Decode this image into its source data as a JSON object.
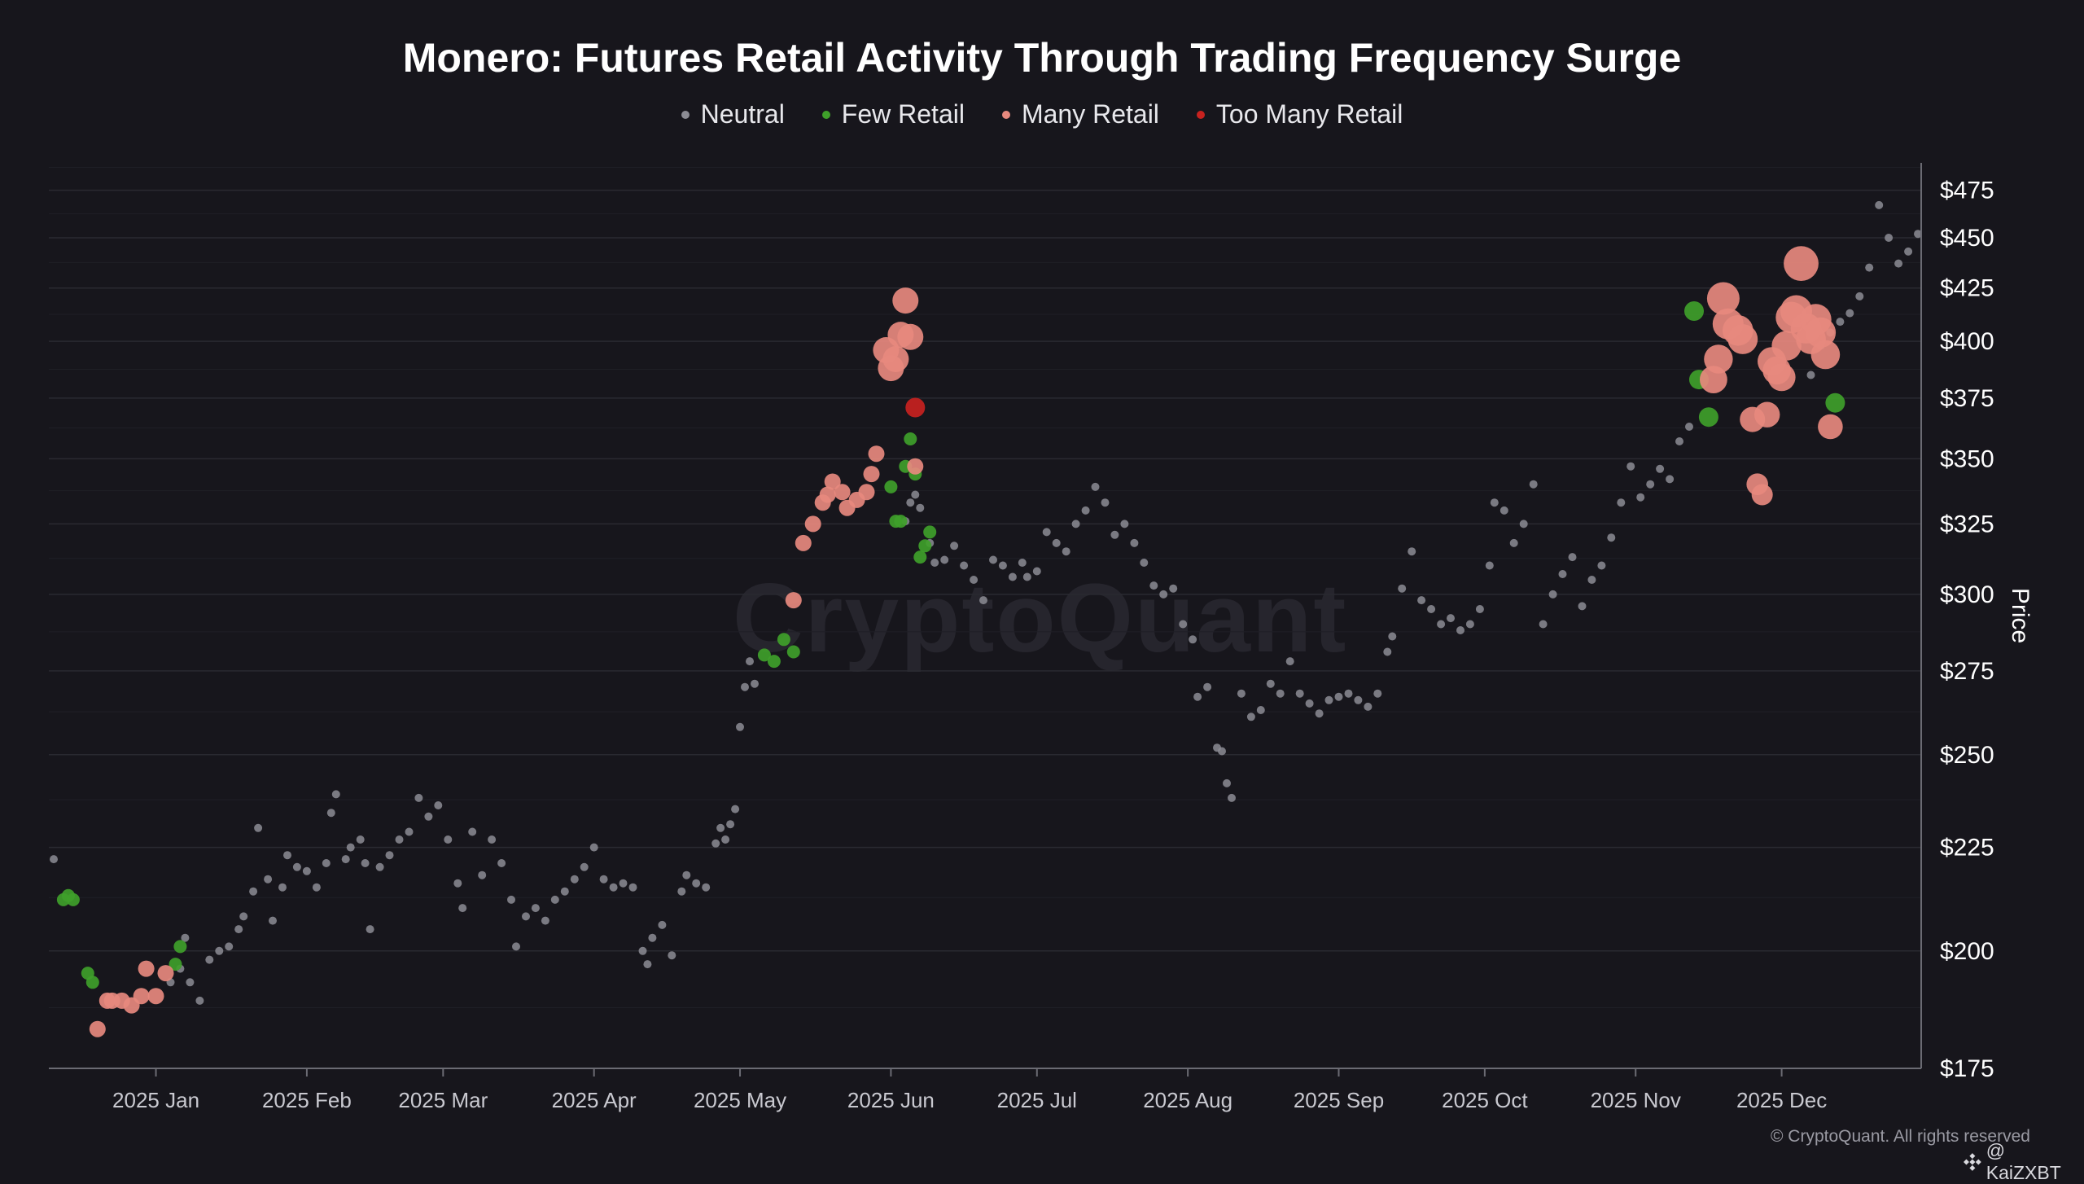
{
  "title": "Monero: Futures Retail Activity Through Trading Frequency Surge",
  "legend": [
    {
      "label": "Neutral",
      "color": "#8c8c94"
    },
    {
      "label": "Few Retail",
      "color": "#3fa02a"
    },
    {
      "label": "Many Retail",
      "color": "#e7897e"
    },
    {
      "label": "Too Many Retail",
      "color": "#c8221f"
    }
  ],
  "watermark": "CryptoQuant",
  "footer": {
    "copyright": "© CryptoQuant. All rights reserved",
    "handle": "@ KaiZXBT",
    "handle_icon": "binance-diamond-icon"
  },
  "chart_data": {
    "type": "scatter",
    "title": "Monero: Futures Retail Activity Through Trading Frequency Surge",
    "ylabel": "Price",
    "y_scale": "log",
    "ylim": [
      175,
      490
    ],
    "x_range": [
      "2024-12-10",
      "2025-12-30"
    ],
    "y_ticks": [
      "$175",
      "$200",
      "$225",
      "$250",
      "$275",
      "$300",
      "$325",
      "$350",
      "$375",
      "$400",
      "$425",
      "$450",
      "$475"
    ],
    "y_tick_values": [
      175,
      200,
      225,
      250,
      275,
      300,
      325,
      350,
      375,
      400,
      425,
      450,
      475
    ],
    "x_ticks": [
      "2025 Jan",
      "2025 Feb",
      "2025 Mar",
      "2025 Apr",
      "2025 May",
      "2025 Jun",
      "2025 Jul",
      "2025 Aug",
      "2025 Sep",
      "2025 Oct",
      "2025 Nov",
      "2025 Dec"
    ],
    "x_tick_dates": [
      "2025-01-01",
      "2025-02-01",
      "2025-03-01",
      "2025-04-01",
      "2025-05-01",
      "2025-06-01",
      "2025-07-01",
      "2025-08-01",
      "2025-09-01",
      "2025-10-01",
      "2025-11-01",
      "2025-12-01"
    ],
    "grid": "horizontal",
    "legend_position": "top-center",
    "categories": [
      "Neutral",
      "Few Retail",
      "Many Retail",
      "Too Many Retail"
    ],
    "series": [
      {
        "name": "Neutral",
        "color": "#8c8c94",
        "points": [
          [
            "2024-12-11",
            222
          ],
          [
            "2025-01-04",
            193
          ],
          [
            "2025-01-06",
            196
          ],
          [
            "2025-01-07",
            203
          ],
          [
            "2025-01-08",
            193
          ],
          [
            "2025-01-10",
            189
          ],
          [
            "2025-01-12",
            198
          ],
          [
            "2025-01-14",
            200
          ],
          [
            "2025-01-16",
            201
          ],
          [
            "2025-01-18",
            205
          ],
          [
            "2025-01-19",
            208
          ],
          [
            "2025-01-21",
            214
          ],
          [
            "2025-01-22",
            230
          ],
          [
            "2025-01-24",
            217
          ],
          [
            "2025-01-25",
            207
          ],
          [
            "2025-01-27",
            215
          ],
          [
            "2025-01-28",
            223
          ],
          [
            "2025-01-30",
            220
          ],
          [
            "2025-02-01",
            219
          ],
          [
            "2025-02-03",
            215
          ],
          [
            "2025-02-05",
            221
          ],
          [
            "2025-02-06",
            234
          ],
          [
            "2025-02-07",
            239
          ],
          [
            "2025-02-09",
            222
          ],
          [
            "2025-02-10",
            225
          ],
          [
            "2025-02-12",
            227
          ],
          [
            "2025-02-13",
            221
          ],
          [
            "2025-02-14",
            205
          ],
          [
            "2025-02-16",
            220
          ],
          [
            "2025-02-18",
            223
          ],
          [
            "2025-02-20",
            227
          ],
          [
            "2025-02-22",
            229
          ],
          [
            "2025-02-24",
            238
          ],
          [
            "2025-02-26",
            233
          ],
          [
            "2025-02-28",
            236
          ],
          [
            "2025-03-02",
            227
          ],
          [
            "2025-03-04",
            216
          ],
          [
            "2025-03-05",
            210
          ],
          [
            "2025-03-07",
            229
          ],
          [
            "2025-03-09",
            218
          ],
          [
            "2025-03-11",
            227
          ],
          [
            "2025-03-13",
            221
          ],
          [
            "2025-03-15",
            212
          ],
          [
            "2025-03-16",
            201
          ],
          [
            "2025-03-18",
            208
          ],
          [
            "2025-03-20",
            210
          ],
          [
            "2025-03-22",
            207
          ],
          [
            "2025-03-24",
            212
          ],
          [
            "2025-03-26",
            214
          ],
          [
            "2025-03-28",
            217
          ],
          [
            "2025-03-30",
            220
          ],
          [
            "2025-04-01",
            225
          ],
          [
            "2025-04-03",
            217
          ],
          [
            "2025-04-05",
            215
          ],
          [
            "2025-04-07",
            216
          ],
          [
            "2025-04-09",
            215
          ],
          [
            "2025-04-11",
            200
          ],
          [
            "2025-04-12",
            197
          ],
          [
            "2025-04-13",
            203
          ],
          [
            "2025-04-15",
            206
          ],
          [
            "2025-04-17",
            199
          ],
          [
            "2025-04-19",
            214
          ],
          [
            "2025-04-20",
            218
          ],
          [
            "2025-04-22",
            216
          ],
          [
            "2025-04-24",
            215
          ],
          [
            "2025-04-26",
            226
          ],
          [
            "2025-04-27",
            230
          ],
          [
            "2025-04-28",
            227
          ],
          [
            "2025-04-29",
            231
          ],
          [
            "2025-04-30",
            235
          ],
          [
            "2025-05-01",
            258
          ],
          [
            "2025-05-02",
            270
          ],
          [
            "2025-05-03",
            278
          ],
          [
            "2025-05-04",
            271
          ],
          [
            "2025-06-04",
            326
          ],
          [
            "2025-06-05",
            333
          ],
          [
            "2025-06-06",
            336
          ],
          [
            "2025-06-07",
            331
          ],
          [
            "2025-06-09",
            318
          ],
          [
            "2025-06-10",
            311
          ],
          [
            "2025-06-12",
            312
          ],
          [
            "2025-06-14",
            317
          ],
          [
            "2025-06-16",
            310
          ],
          [
            "2025-06-18",
            305
          ],
          [
            "2025-06-20",
            298
          ],
          [
            "2025-06-22",
            312
          ],
          [
            "2025-06-24",
            310
          ],
          [
            "2025-06-26",
            306
          ],
          [
            "2025-06-28",
            311
          ],
          [
            "2025-06-29",
            306
          ],
          [
            "2025-07-01",
            308
          ],
          [
            "2025-07-03",
            322
          ],
          [
            "2025-07-05",
            318
          ],
          [
            "2025-07-07",
            315
          ],
          [
            "2025-07-09",
            325
          ],
          [
            "2025-07-11",
            330
          ],
          [
            "2025-07-13",
            339
          ],
          [
            "2025-07-15",
            333
          ],
          [
            "2025-07-17",
            321
          ],
          [
            "2025-07-19",
            325
          ],
          [
            "2025-07-21",
            318
          ],
          [
            "2025-07-23",
            311
          ],
          [
            "2025-07-25",
            303
          ],
          [
            "2025-07-27",
            300
          ],
          [
            "2025-07-29",
            302
          ],
          [
            "2025-07-31",
            290
          ],
          [
            "2025-08-02",
            285
          ],
          [
            "2025-08-03",
            267
          ],
          [
            "2025-08-05",
            270
          ],
          [
            "2025-08-07",
            252
          ],
          [
            "2025-08-08",
            251
          ],
          [
            "2025-08-09",
            242
          ],
          [
            "2025-08-10",
            238
          ],
          [
            "2025-08-12",
            268
          ],
          [
            "2025-08-14",
            261
          ],
          [
            "2025-08-16",
            263
          ],
          [
            "2025-08-18",
            271
          ],
          [
            "2025-08-20",
            268
          ],
          [
            "2025-08-22",
            278
          ],
          [
            "2025-08-24",
            268
          ],
          [
            "2025-08-26",
            265
          ],
          [
            "2025-08-28",
            262
          ],
          [
            "2025-08-30",
            266
          ],
          [
            "2025-09-01",
            267
          ],
          [
            "2025-09-03",
            268
          ],
          [
            "2025-09-05",
            266
          ],
          [
            "2025-09-07",
            264
          ],
          [
            "2025-09-09",
            268
          ],
          [
            "2025-09-11",
            281
          ],
          [
            "2025-09-12",
            286
          ],
          [
            "2025-09-14",
            302
          ],
          [
            "2025-09-16",
            315
          ],
          [
            "2025-09-18",
            298
          ],
          [
            "2025-09-20",
            295
          ],
          [
            "2025-09-22",
            290
          ],
          [
            "2025-09-24",
            292
          ],
          [
            "2025-09-26",
            288
          ],
          [
            "2025-09-28",
            290
          ],
          [
            "2025-09-30",
            295
          ],
          [
            "2025-10-02",
            310
          ],
          [
            "2025-10-03",
            333
          ],
          [
            "2025-10-05",
            330
          ],
          [
            "2025-10-07",
            318
          ],
          [
            "2025-10-09",
            325
          ],
          [
            "2025-10-11",
            340
          ],
          [
            "2025-10-13",
            290
          ],
          [
            "2025-10-15",
            300
          ],
          [
            "2025-10-17",
            307
          ],
          [
            "2025-10-19",
            313
          ],
          [
            "2025-10-21",
            296
          ],
          [
            "2025-10-23",
            305
          ],
          [
            "2025-10-25",
            310
          ],
          [
            "2025-10-27",
            320
          ],
          [
            "2025-10-29",
            333
          ],
          [
            "2025-10-31",
            347
          ],
          [
            "2025-11-02",
            335
          ],
          [
            "2025-11-04",
            340
          ],
          [
            "2025-11-06",
            346
          ],
          [
            "2025-11-08",
            342
          ],
          [
            "2025-11-10",
            357
          ],
          [
            "2025-11-12",
            363
          ],
          [
            "2025-12-07",
            385
          ],
          [
            "2025-12-09",
            398
          ],
          [
            "2025-12-11",
            404
          ],
          [
            "2025-12-13",
            409
          ],
          [
            "2025-12-15",
            413
          ],
          [
            "2025-12-17",
            421
          ],
          [
            "2025-12-19",
            435
          ],
          [
            "2025-12-21",
            467
          ],
          [
            "2025-12-23",
            450
          ],
          [
            "2025-12-25",
            437
          ],
          [
            "2025-12-27",
            443
          ],
          [
            "2025-12-29",
            452
          ]
        ]
      },
      {
        "name": "Few Retail",
        "color": "#3fa02a",
        "points": [
          [
            "2024-12-13",
            212
          ],
          [
            "2024-12-14",
            213
          ],
          [
            "2024-12-15",
            212
          ],
          [
            "2024-12-18",
            195
          ],
          [
            "2024-12-19",
            193
          ],
          [
            "2025-01-05",
            197
          ],
          [
            "2025-01-06",
            201
          ],
          [
            "2025-05-06",
            280
          ],
          [
            "2025-05-08",
            278
          ],
          [
            "2025-05-10",
            285
          ],
          [
            "2025-05-12",
            281
          ],
          [
            "2025-06-01",
            339
          ],
          [
            "2025-06-02",
            326
          ],
          [
            "2025-06-03",
            326
          ],
          [
            "2025-06-04",
            347
          ],
          [
            "2025-06-05",
            358
          ],
          [
            "2025-06-06",
            344
          ],
          [
            "2025-06-07",
            313
          ],
          [
            "2025-06-08",
            317
          ],
          [
            "2025-06-09",
            322
          ],
          [
            "2025-11-13",
            414
          ],
          [
            "2025-11-14",
            383
          ],
          [
            "2025-11-16",
            367
          ],
          [
            "2025-12-12",
            373
          ]
        ]
      },
      {
        "name": "Many Retail",
        "color": "#e7897e",
        "points": [
          [
            "2024-12-20",
            183
          ],
          [
            "2024-12-22",
            189
          ],
          [
            "2024-12-23",
            189
          ],
          [
            "2024-12-25",
            189
          ],
          [
            "2024-12-27",
            188
          ],
          [
            "2024-12-29",
            190
          ],
          [
            "2024-12-30",
            196
          ],
          [
            "2025-01-01",
            190
          ],
          [
            "2025-01-03",
            195
          ],
          [
            "2025-05-12",
            298
          ],
          [
            "2025-05-14",
            318
          ],
          [
            "2025-05-16",
            325
          ],
          [
            "2025-05-18",
            333
          ],
          [
            "2025-05-19",
            336
          ],
          [
            "2025-05-20",
            341
          ],
          [
            "2025-05-22",
            337
          ],
          [
            "2025-05-23",
            331
          ],
          [
            "2025-05-25",
            334
          ],
          [
            "2025-05-27",
            337
          ],
          [
            "2025-05-28",
            344
          ],
          [
            "2025-05-29",
            352
          ],
          [
            "2025-05-31",
            396
          ],
          [
            "2025-06-01",
            388
          ],
          [
            "2025-06-02",
            392
          ],
          [
            "2025-06-03",
            403
          ],
          [
            "2025-06-04",
            419
          ],
          [
            "2025-06-05",
            402
          ],
          [
            "2025-06-06",
            347
          ],
          [
            "2025-11-17",
            383
          ],
          [
            "2025-11-18",
            392
          ],
          [
            "2025-11-19",
            420
          ],
          [
            "2025-11-20",
            408
          ],
          [
            "2025-11-22",
            405
          ],
          [
            "2025-11-23",
            401
          ],
          [
            "2025-11-25",
            366
          ],
          [
            "2025-11-26",
            340
          ],
          [
            "2025-11-27",
            336
          ],
          [
            "2025-11-28",
            368
          ],
          [
            "2025-11-29",
            391
          ],
          [
            "2025-11-30",
            387
          ],
          [
            "2025-12-01",
            384
          ],
          [
            "2025-12-02",
            398
          ],
          [
            "2025-12-03",
            411
          ],
          [
            "2025-12-04",
            414
          ],
          [
            "2025-12-05",
            437
          ],
          [
            "2025-12-06",
            406
          ],
          [
            "2025-12-07",
            401
          ],
          [
            "2025-12-08",
            410
          ],
          [
            "2025-12-09",
            404
          ],
          [
            "2025-12-10",
            394
          ],
          [
            "2025-12-11",
            363
          ]
        ]
      },
      {
        "name": "Too Many Retail",
        "color": "#c8221f",
        "points": [
          [
            "2025-06-06",
            371
          ]
        ]
      }
    ]
  }
}
